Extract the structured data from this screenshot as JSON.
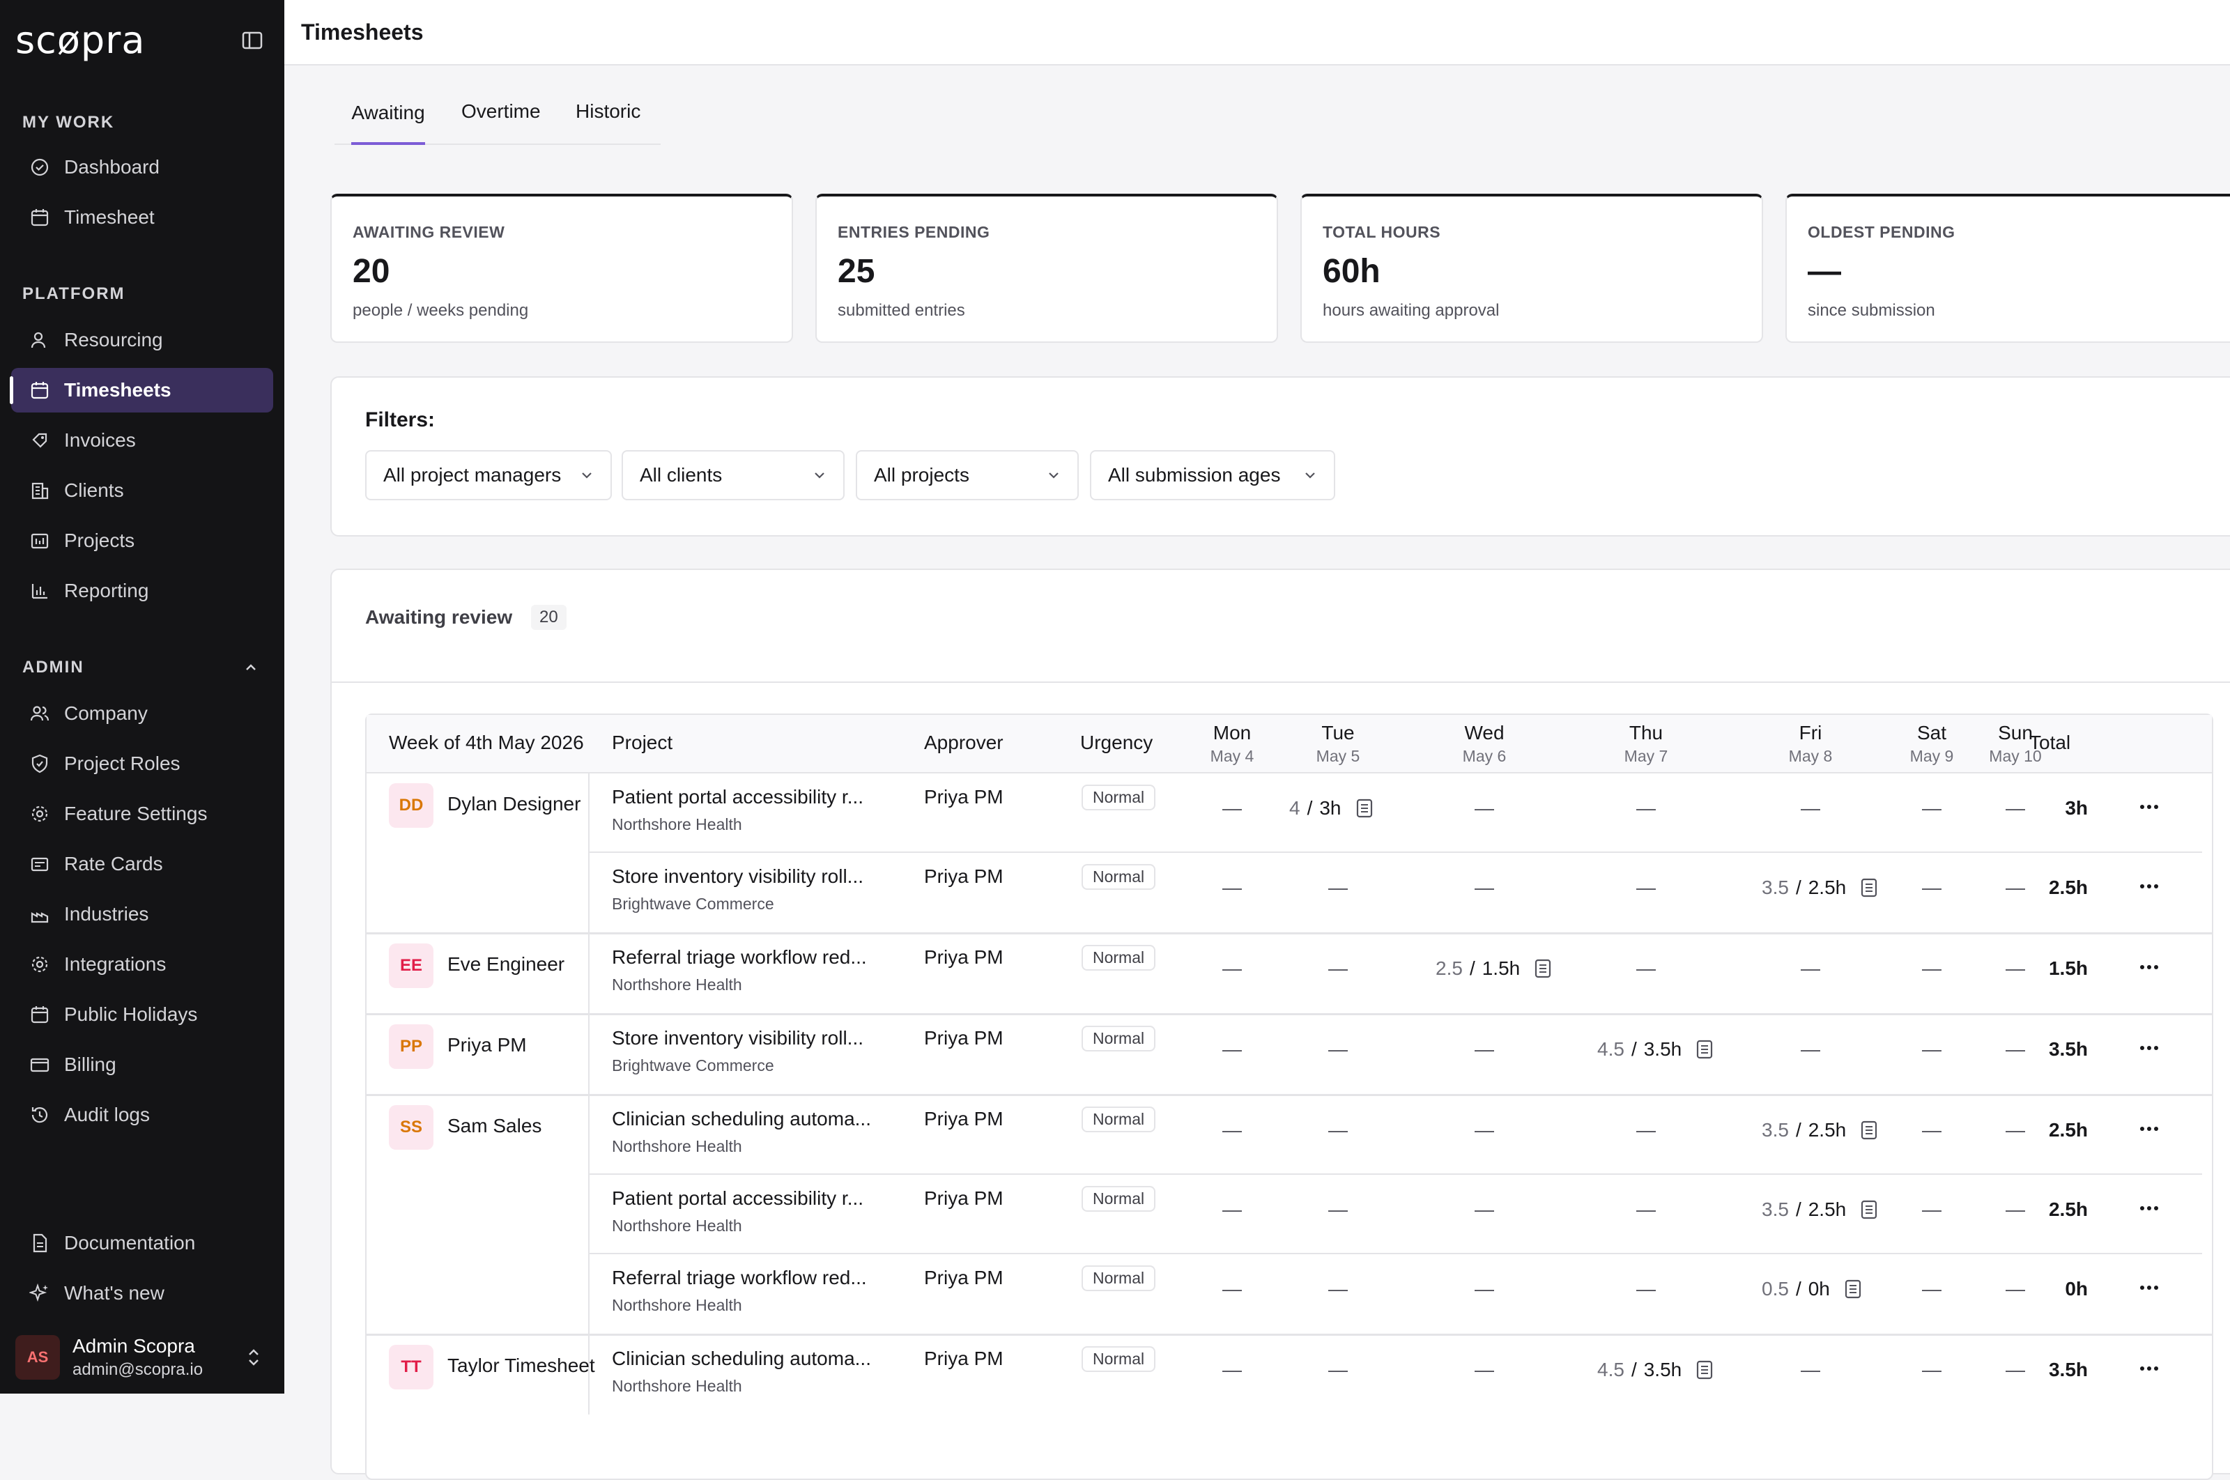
{
  "app": {
    "logo": "scøpra",
    "page_title": "Timesheets"
  },
  "sidebar": {
    "sections": [
      {
        "label": "MY WORK",
        "items": [
          {
            "label": "Dashboard",
            "icon": "dashboard-check-icon"
          },
          {
            "label": "Timesheet",
            "icon": "calendar-icon"
          }
        ]
      },
      {
        "label": "PLATFORM",
        "items": [
          {
            "label": "Resourcing",
            "icon": "user-icon"
          },
          {
            "label": "Timesheets",
            "icon": "calendar-icon",
            "active": true
          },
          {
            "label": "Invoices",
            "icon": "invoice-icon"
          },
          {
            "label": "Clients",
            "icon": "building-icon"
          },
          {
            "label": "Projects",
            "icon": "projects-icon"
          },
          {
            "label": "Reporting",
            "icon": "bar-chart-icon"
          }
        ]
      },
      {
        "label": "ADMIN",
        "items": [
          {
            "label": "Company",
            "icon": "users-icon"
          },
          {
            "label": "Project Roles",
            "icon": "shield-icon"
          },
          {
            "label": "Feature Settings",
            "icon": "gear-icon"
          },
          {
            "label": "Rate Cards",
            "icon": "rate-card-icon"
          },
          {
            "label": "Industries",
            "icon": "industry-icon"
          },
          {
            "label": "Integrations",
            "icon": "gear-icon"
          },
          {
            "label": "Public Holidays",
            "icon": "calendar-icon"
          },
          {
            "label": "Billing",
            "icon": "credit-card-icon"
          },
          {
            "label": "Audit logs",
            "icon": "history-icon"
          }
        ]
      }
    ],
    "footer": [
      {
        "label": "Documentation",
        "icon": "document-icon"
      },
      {
        "label": "What's new",
        "icon": "sparkle-icon"
      }
    ],
    "user": {
      "initials": "AS",
      "name": "Admin Scopra",
      "email": "admin@scopra.io"
    }
  },
  "tabs": [
    {
      "label": "Awaiting",
      "active": true
    },
    {
      "label": "Overtime"
    },
    {
      "label": "Historic"
    }
  ],
  "stats": [
    {
      "label": "AWAITING REVIEW",
      "value": "20",
      "sub": "people / weeks pending"
    },
    {
      "label": "ENTRIES PENDING",
      "value": "25",
      "sub": "submitted entries"
    },
    {
      "label": "TOTAL HOURS",
      "value": "60h",
      "sub": "hours awaiting approval"
    },
    {
      "label": "OLDEST PENDING",
      "value": "—",
      "sub": "since submission"
    }
  ],
  "filters": {
    "title": "Filters:",
    "selects": [
      {
        "value": "All project managers"
      },
      {
        "value": "All clients"
      },
      {
        "value": "All projects"
      },
      {
        "value": "All submission ages"
      }
    ]
  },
  "review": {
    "title": "Awaiting review",
    "count": "20",
    "columns": {
      "week": "Week of 4th May 2026",
      "project": "Project",
      "approver": "Approver",
      "urgency": "Urgency",
      "total": "Total",
      "days": [
        {
          "day": "Mon",
          "date": "May 4"
        },
        {
          "day": "Tue",
          "date": "May 5"
        },
        {
          "day": "Wed",
          "date": "May 6"
        },
        {
          "day": "Thu",
          "date": "May 7"
        },
        {
          "day": "Fri",
          "date": "May 8"
        },
        {
          "day": "Sat",
          "date": "May 9"
        },
        {
          "day": "Sun",
          "date": "May 10"
        }
      ]
    },
    "groups": [
      {
        "initials": "DD",
        "initials_color": "#d97706",
        "name": "Dylan Designer",
        "rows": [
          {
            "project": "Patient portal accessibility r...",
            "client": "Northshore Health",
            "approver": "Priya PM",
            "urgency": "Normal",
            "day": 1,
            "submitted": "4",
            "approved": "3h",
            "total": "3h"
          },
          {
            "project": "Store inventory visibility roll...",
            "client": "Brightwave Commerce",
            "approver": "Priya PM",
            "urgency": "Normal",
            "day": 4,
            "submitted": "3.5",
            "approved": "2.5h",
            "total": "2.5h"
          }
        ]
      },
      {
        "initials": "EE",
        "initials_color": "#e11d48",
        "name": "Eve Engineer",
        "rows": [
          {
            "project": "Referral triage workflow red...",
            "client": "Northshore Health",
            "approver": "Priya PM",
            "urgency": "Normal",
            "day": 2,
            "submitted": "2.5",
            "approved": "1.5h",
            "total": "1.5h"
          }
        ]
      },
      {
        "initials": "PP",
        "initials_color": "#d97706",
        "name": "Priya PM",
        "rows": [
          {
            "project": "Store inventory visibility roll...",
            "client": "Brightwave Commerce",
            "approver": "Priya PM",
            "urgency": "Normal",
            "day": 3,
            "submitted": "4.5",
            "approved": "3.5h",
            "total": "3.5h"
          }
        ]
      },
      {
        "initials": "SS",
        "initials_color": "#d97706",
        "name": "Sam Sales",
        "rows": [
          {
            "project": "Clinician scheduling automa...",
            "client": "Northshore Health",
            "approver": "Priya PM",
            "urgency": "Normal",
            "day": 4,
            "submitted": "3.5",
            "approved": "2.5h",
            "total": "2.5h"
          },
          {
            "project": "Patient portal accessibility r...",
            "client": "Northshore Health",
            "approver": "Priya PM",
            "urgency": "Normal",
            "day": 4,
            "submitted": "3.5",
            "approved": "2.5h",
            "total": "2.5h"
          },
          {
            "project": "Referral triage workflow red...",
            "client": "Northshore Health",
            "approver": "Priya PM",
            "urgency": "Normal",
            "day": 4,
            "submitted": "0.5",
            "approved": "0h",
            "total": "0h"
          }
        ]
      },
      {
        "initials": "TT",
        "initials_color": "#e11d48",
        "name": "Taylor Timesheet",
        "rows": [
          {
            "project": "Clinician scheduling automa...",
            "client": "Northshore Health",
            "approver": "Priya PM",
            "urgency": "Normal",
            "day": 3,
            "submitted": "4.5",
            "approved": "3.5h",
            "total": "3.5h"
          }
        ]
      }
    ]
  }
}
